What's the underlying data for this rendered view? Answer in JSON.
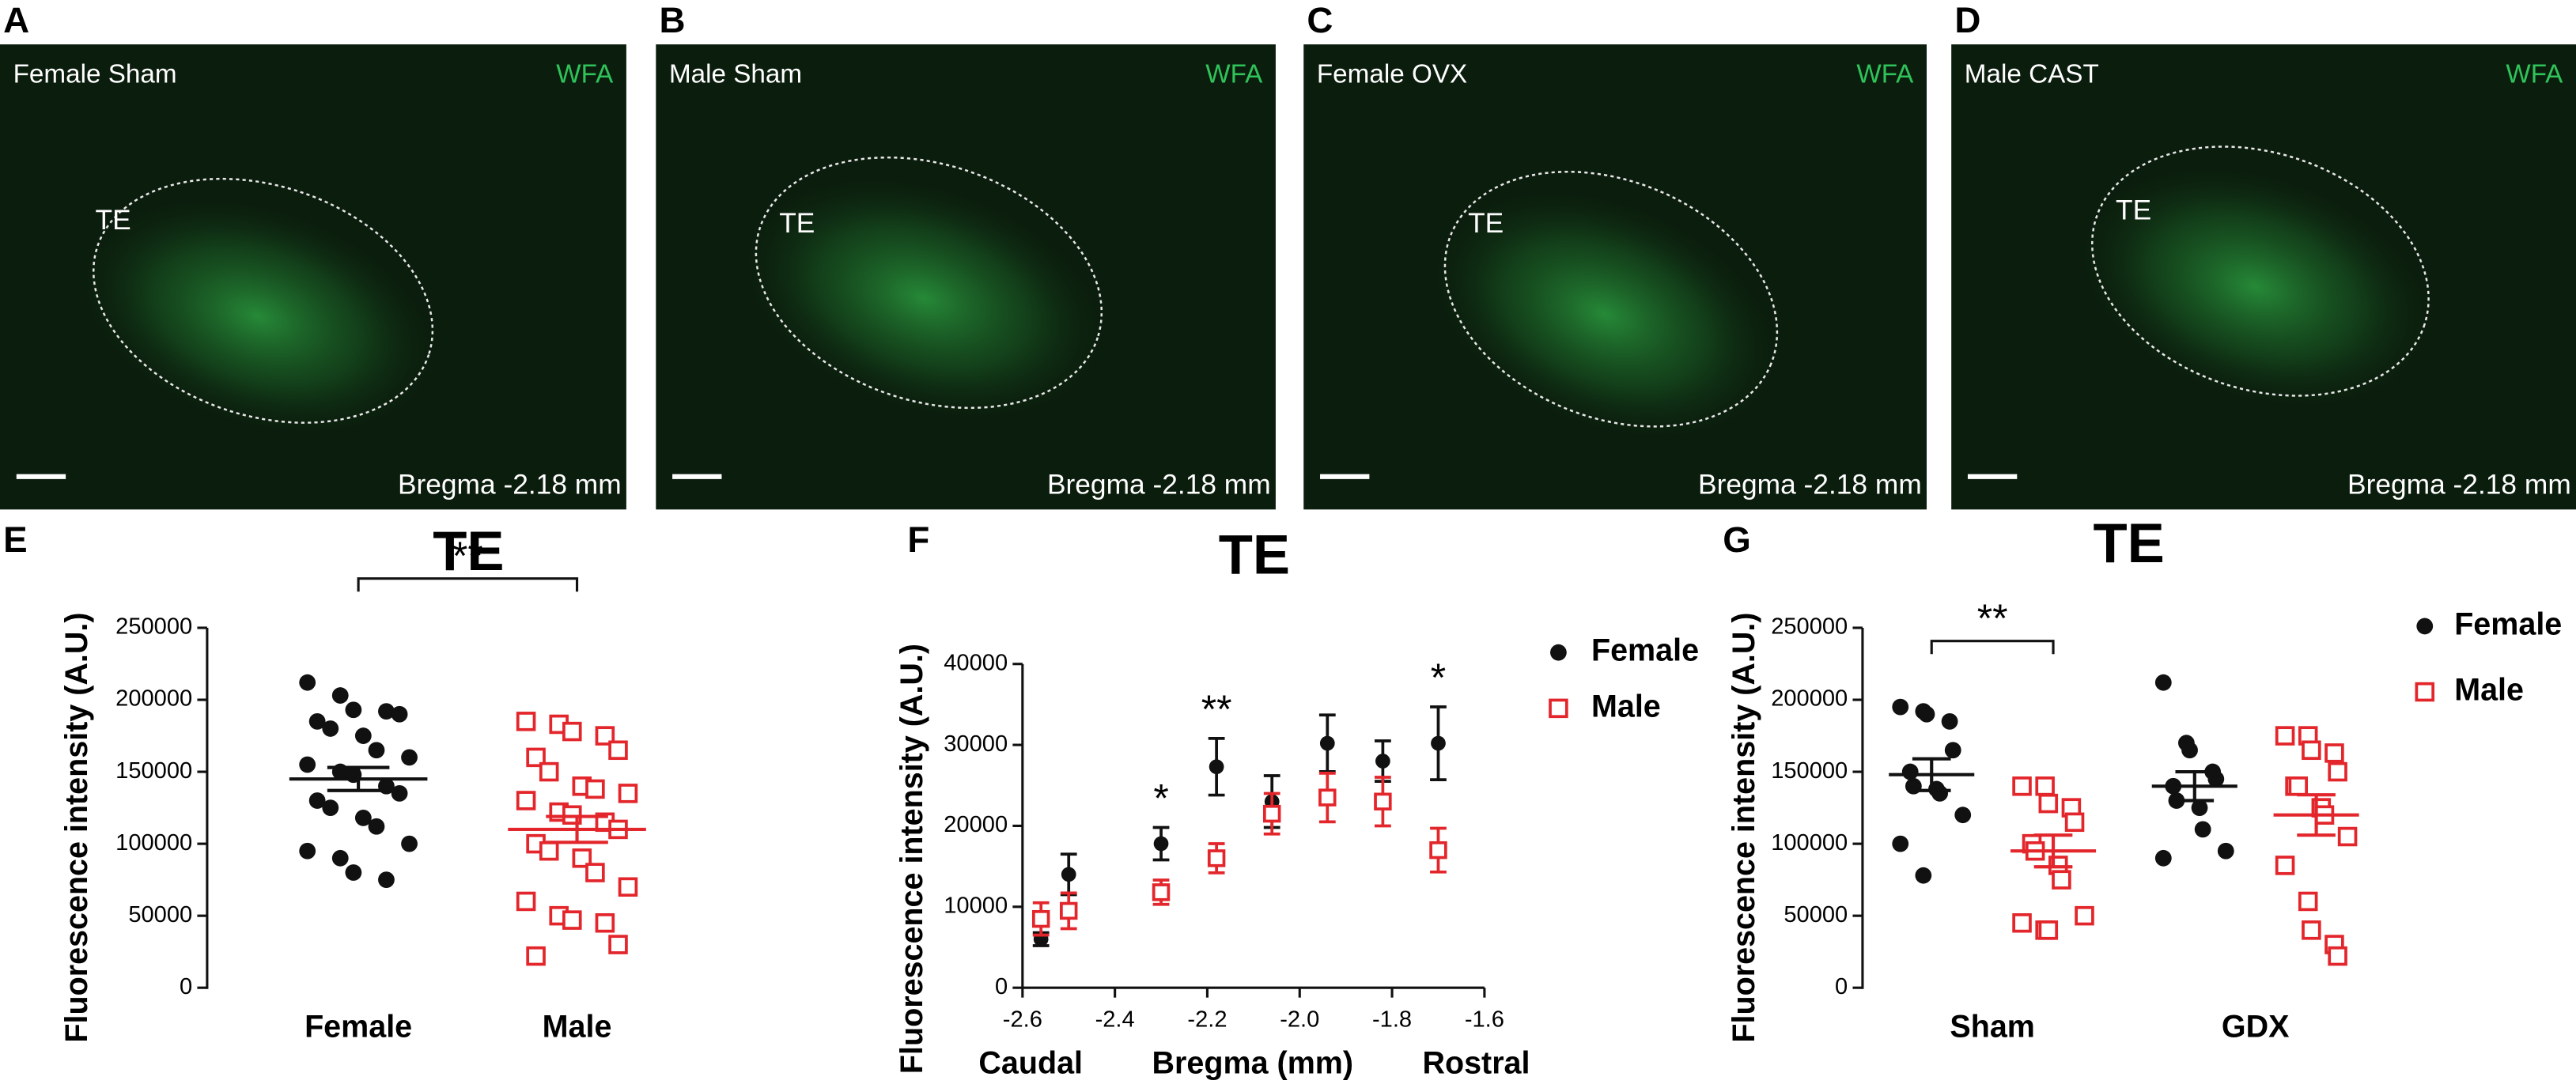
{
  "panels": [
    {
      "letter": "A",
      "condition": "Female Sham",
      "stain": "WFA",
      "region": "TE",
      "bregma": "Bregma -2.18 mm"
    },
    {
      "letter": "B",
      "condition": "Male Sham",
      "stain": "WFA",
      "region": "TE",
      "bregma": "Bregma -2.18 mm"
    },
    {
      "letter": "C",
      "condition": "Female OVX",
      "stain": "WFA",
      "region": "TE",
      "bregma": "Bregma -2.18 mm"
    },
    {
      "letter": "D",
      "condition": "Male CAST",
      "stain": "WFA",
      "region": "TE",
      "bregma": "Bregma -2.18 mm"
    }
  ],
  "chart_data": [
    {
      "type": "strip",
      "panel": "E",
      "title": "TE",
      "ylabel": "Fluorescence intensity (A.U.)",
      "categories": [
        "Female",
        "Male"
      ],
      "colors": [
        "#111111",
        "#e3262b"
      ],
      "markers": [
        "circle",
        "square"
      ],
      "points": [
        [
          212000,
          203000,
          193000,
          192000,
          190000,
          185000,
          180000,
          175000,
          165000,
          160000,
          155000,
          150000,
          148000,
          140000,
          135000,
          130000,
          125000,
          118000,
          112000,
          100000,
          95000,
          90000,
          80000,
          75000
        ],
        [
          185000,
          183000,
          178000,
          175000,
          165000,
          160000,
          150000,
          140000,
          138000,
          135000,
          130000,
          122000,
          120000,
          115000,
          110000,
          100000,
          95000,
          90000,
          80000,
          70000,
          60000,
          50000,
          47000,
          45000,
          30000,
          22000
        ]
      ],
      "mean": [
        145000,
        110000
      ],
      "sem": [
        8000,
        9000
      ],
      "significance": "**",
      "ylim": [
        0,
        250000
      ],
      "yticks": [
        0,
        50000,
        100000,
        150000,
        200000,
        250000
      ]
    },
    {
      "type": "errorbar",
      "panel": "F",
      "title": "TE",
      "ylabel": "Fluorescence intensity (A.U.)",
      "xlabel": "Bregma (mm)",
      "xlabel_left": "Caudal",
      "xlabel_right": "Rostral",
      "x": [
        -2.56,
        -2.5,
        -2.3,
        -2.18,
        -2.06,
        -1.94,
        -1.82,
        -1.7
      ],
      "series": [
        {
          "name": "Female",
          "color": "#111111",
          "marker": "circle",
          "values": [
            6000,
            14000,
            17800,
            27300,
            23000,
            30200,
            28000,
            30200
          ],
          "errors": [
            800,
            2500,
            2000,
            3500,
            3200,
            3500,
            2500,
            4500
          ]
        },
        {
          "name": "Male",
          "color": "#e3262b",
          "marker": "square",
          "values": [
            8500,
            9500,
            11800,
            16000,
            21500,
            23500,
            23000,
            17000
          ],
          "errors": [
            2000,
            2200,
            1500,
            1800,
            2500,
            3000,
            3000,
            2700
          ]
        }
      ],
      "annotations": [
        {
          "text": "*",
          "x": -2.3
        },
        {
          "text": "**",
          "x": -2.18
        },
        {
          "text": "*",
          "x": -1.7
        }
      ],
      "xlim": [
        -2.6,
        -1.6
      ],
      "xticks": [
        -2.6,
        -2.4,
        -2.2,
        {
          "value": -2,
          "label": "-2.0"
        },
        -1.8,
        -1.6
      ],
      "ylim": [
        0,
        40000
      ],
      "yticks": [
        0,
        10000,
        20000,
        30000,
        40000
      ]
    },
    {
      "type": "strip",
      "panel": "G",
      "title": "TE",
      "ylabel": "Fluorescence intensity (A.U.)",
      "categories": [
        "Sham",
        "GDX"
      ],
      "series": [
        {
          "name": "Female",
          "color": "#111111",
          "marker": "circle",
          "groups": [
            [
              195000,
              192000,
              190000,
              185000,
              165000,
              150000,
              140000,
              138000,
              135000,
              120000,
              100000,
              78000
            ],
            [
              212000,
              170000,
              165000,
              150000,
              145000,
              140000,
              130000,
              125000,
              110000,
              95000,
              90000
            ]
          ],
          "mean": [
            148000,
            140000
          ],
          "sem": [
            11000,
            10000
          ]
        },
        {
          "name": "Male",
          "color": "#e3262b",
          "marker": "square",
          "groups": [
            [
              140000,
              140000,
              128000,
              125000,
              115000,
              100000,
              95000,
              85000,
              75000,
              50000,
              45000,
              40000,
              40000
            ],
            [
              175000,
              175000,
              165000,
              163000,
              150000,
              140000,
              140000,
              125000,
              120000,
              105000,
              85000,
              60000,
              40000,
              30000,
              22000
            ]
          ],
          "mean": [
            95000,
            120000
          ],
          "sem": [
            11000,
            14000
          ]
        }
      ],
      "significance": [
        "**",
        null
      ],
      "ylim": [
        0,
        250000
      ],
      "yticks": [
        0,
        50000,
        100000,
        150000,
        200000,
        250000
      ]
    }
  ]
}
